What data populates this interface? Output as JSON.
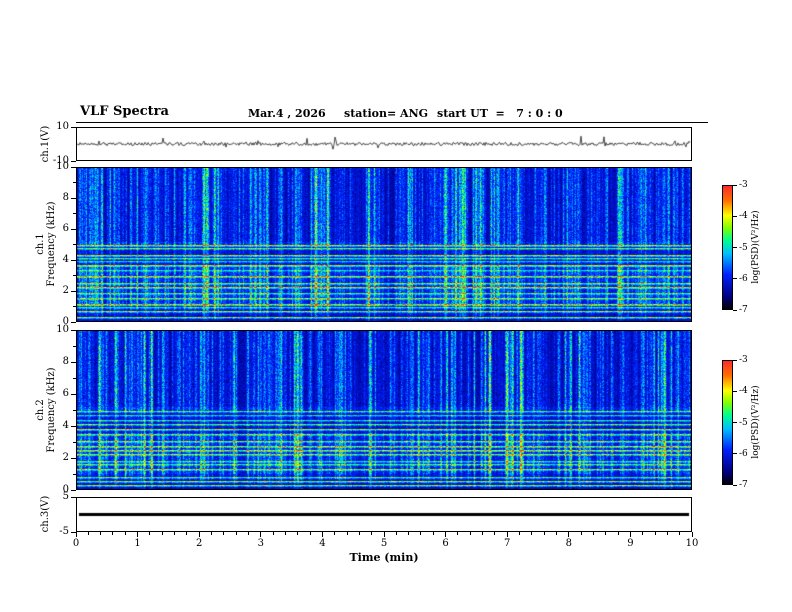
{
  "header": {
    "title": "VLF Spectra",
    "date": "Mar.4 , 2026",
    "station": "station= ANG",
    "start_ut": "start UT  =   7 : 0 : 0"
  },
  "xaxis": {
    "label": "Time (min)",
    "ticks": [
      "0",
      "1",
      "2",
      "3",
      "4",
      "5",
      "6",
      "7",
      "8",
      "9",
      "10"
    ],
    "range": [
      0,
      10
    ]
  },
  "panels": {
    "ch1_wave": {
      "ylabel": "ch.1(V)",
      "yticks": [
        "10",
        "-10"
      ],
      "ylim": [
        -10,
        10
      ]
    },
    "ch1_spec": {
      "ylabel_channel": "ch.1",
      "ylabel_axis": "Frequency (kHz)",
      "yticks": [
        "10",
        "8",
        "6",
        "4",
        "2",
        "0"
      ],
      "ylim": [
        0,
        10
      ]
    },
    "ch2_spec": {
      "ylabel_channel": "ch.2",
      "ylabel_axis": "Frequency (kHz)",
      "yticks": [
        "10",
        "8",
        "6",
        "4",
        "2",
        "0"
      ],
      "ylim": [
        0,
        10
      ]
    },
    "ch3_wave": {
      "ylabel": "ch.3(V)",
      "yticks": [
        "5",
        "-5"
      ],
      "ylim": [
        -5,
        5
      ]
    }
  },
  "colorbar": {
    "label": "log(PSD)(V²/Hz)",
    "ticks": [
      "-3",
      "-4",
      "-5",
      "-6",
      "-7"
    ],
    "range": [
      -7,
      -3
    ]
  },
  "colormap": {
    "stops": [
      {
        "p": 0.0,
        "c": "#000006"
      },
      {
        "p": 0.1,
        "c": "#000080"
      },
      {
        "p": 0.28,
        "c": "#0020ff"
      },
      {
        "p": 0.45,
        "c": "#00c0ff"
      },
      {
        "p": 0.56,
        "c": "#00ff90"
      },
      {
        "p": 0.66,
        "c": "#80ff00"
      },
      {
        "p": 0.76,
        "c": "#ffff00"
      },
      {
        "p": 0.88,
        "c": "#ff7000"
      },
      {
        "p": 1.0,
        "c": "#ff2a2a"
      }
    ]
  },
  "chart_data": [
    {
      "type": "line",
      "title": "ch.1 time series",
      "xlabel": "Time (min)",
      "ylabel": "ch.1(V)",
      "xlim": [
        0,
        10
      ],
      "ylim": [
        -10,
        10
      ],
      "description": "Low-amplitude noise centered on 0 V for the full 10 minutes with sparse impulsive spikes of a few volts."
    },
    {
      "type": "heatmap",
      "title": "ch.1 VLF spectrogram",
      "xlabel": "Time (min)",
      "ylabel": "Frequency (kHz)",
      "xlim": [
        0,
        10
      ],
      "ylim": [
        0,
        10
      ],
      "zlabel": "log(PSD)(V²/Hz)",
      "zlim": [
        -7,
        -3
      ],
      "description": "Dense broadband vertical sferic streaks (green/yellow, PSD about -4 to -5) over a dark blue background near -7; bright quasi-horizontal interference lines below about 5 kHz; quieter dark band near 4-5 kHz."
    },
    {
      "type": "heatmap",
      "title": "ch.2 VLF spectrogram",
      "xlabel": "Time (min)",
      "ylabel": "Frequency (kHz)",
      "xlim": [
        0,
        10
      ],
      "ylim": [
        0,
        10
      ],
      "zlabel": "log(PSD)(V²/Hz)",
      "zlim": [
        -7,
        -3
      ],
      "description": "Similar to ch.1: broadband vertical streaks above about 1 kHz and bright horizontal interference lines below about 5 kHz."
    },
    {
      "type": "line",
      "title": "ch.3 time series",
      "xlabel": "Time (min)",
      "ylabel": "ch.3(V)",
      "xlim": [
        0,
        10
      ],
      "ylim": [
        -5,
        5
      ],
      "values_constant": 0,
      "description": "Flat line at approximately 0 V for the entire interval."
    }
  ]
}
